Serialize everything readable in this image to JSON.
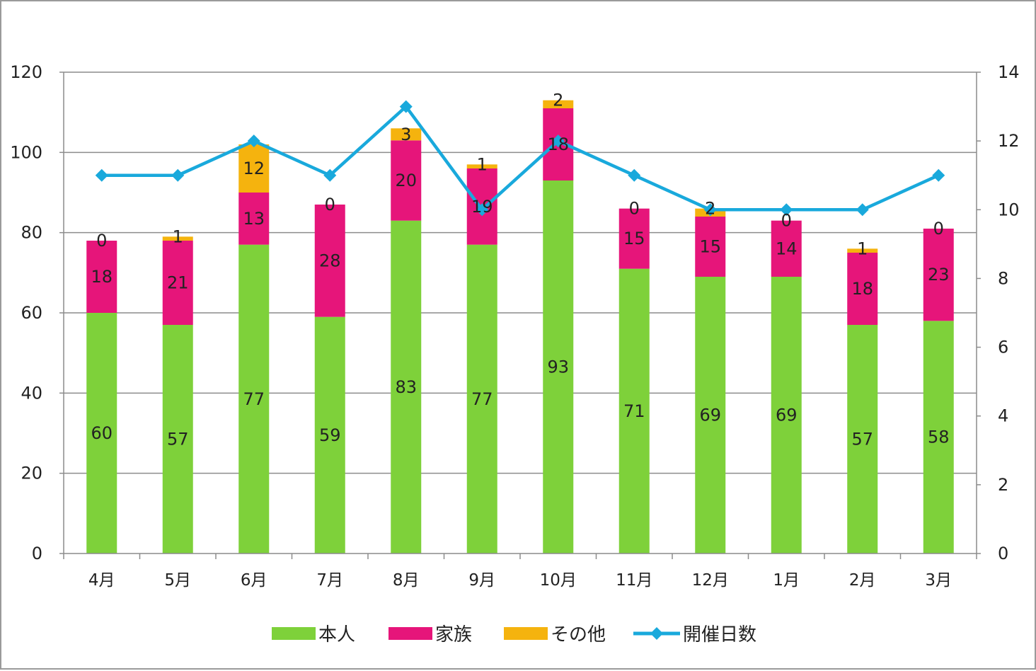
{
  "chart_data": {
    "type": "bar",
    "stacked": true,
    "categories": [
      "4月",
      "5月",
      "6月",
      "7月",
      "8月",
      "9月",
      "10月",
      "11月",
      "12月",
      "1月",
      "2月",
      "3月"
    ],
    "series": [
      {
        "name": "本人",
        "type": "bar",
        "axis": "left",
        "color": "#7ed13a",
        "values": [
          60,
          57,
          77,
          59,
          83,
          77,
          93,
          71,
          69,
          69,
          57,
          58
        ]
      },
      {
        "name": "家族",
        "type": "bar",
        "axis": "left",
        "color": "#e6157a",
        "values": [
          18,
          21,
          13,
          28,
          20,
          19,
          18,
          15,
          15,
          14,
          18,
          23
        ]
      },
      {
        "name": "その他",
        "type": "bar",
        "axis": "left",
        "color": "#f5b30e",
        "values": [
          0,
          1,
          12,
          0,
          3,
          1,
          2,
          0,
          2,
          0,
          1,
          0
        ]
      },
      {
        "name": "開催日数",
        "type": "line",
        "axis": "right",
        "color": "#19a9dc",
        "values": [
          11,
          11,
          12,
          11,
          13,
          10,
          12,
          11,
          10,
          10,
          10,
          11
        ]
      }
    ],
    "y_left": {
      "min": 0,
      "max": 120,
      "ticks": [
        0,
        20,
        40,
        60,
        80,
        100,
        120
      ]
    },
    "y_right": {
      "min": 0,
      "max": 14,
      "ticks": [
        0,
        2,
        4,
        6,
        8,
        10,
        12,
        14
      ]
    },
    "grid": true,
    "legend_position": "bottom"
  }
}
